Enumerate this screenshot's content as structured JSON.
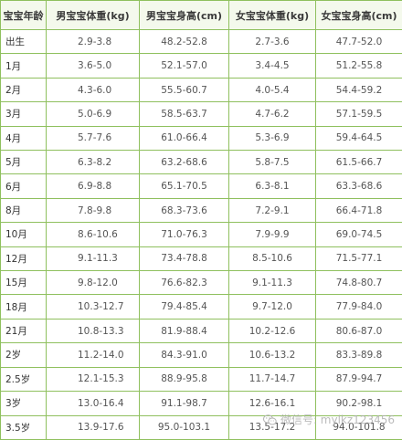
{
  "table": {
    "headers": [
      "宝宝年龄",
      "男宝宝体重(kg)",
      "男宝宝身高(cm)",
      "女宝宝体重(kg)",
      "女宝宝身高(cm)"
    ],
    "rows": [
      [
        "出生",
        "2.9-3.8",
        "48.2-52.8",
        "2.7-3.6",
        "47.7-52.0"
      ],
      [
        "1月",
        "3.6-5.0",
        "52.1-57.0",
        "3.4-4.5",
        "51.2-55.8"
      ],
      [
        "2月",
        "4.3-6.0",
        "55.5-60.7",
        "4.0-5.4",
        "54.4-59.2"
      ],
      [
        "3月",
        "5.0-6.9",
        "58.5-63.7",
        "4.7-6.2",
        "57.1-59.5"
      ],
      [
        "4月",
        "5.7-7.6",
        "61.0-66.4",
        "5.3-6.9",
        "59.4-64.5"
      ],
      [
        "5月",
        "6.3-8.2",
        "63.2-68.6",
        "5.8-7.5",
        "61.5-66.7"
      ],
      [
        "6月",
        "6.9-8.8",
        "65.1-70.5",
        "6.3-8.1",
        "63.3-68.6"
      ],
      [
        "8月",
        "7.8-9.8",
        "68.3-73.6",
        "7.2-9.1",
        "66.4-71.8"
      ],
      [
        "10月",
        "8.6-10.6",
        "71.0-76.3",
        "7.9-9.9",
        "69.0-74.5"
      ],
      [
        "12月",
        "9.1-11.3",
        "73.4-78.8",
        "8.5-10.6",
        "71.5-77.1"
      ],
      [
        "15月",
        "9.8-12.0",
        "76.6-82.3",
        "9.1-11.3",
        "74.8-80.7"
      ],
      [
        "18月",
        "10.3-12.7",
        "79.4-85.4",
        "9.7-12.0",
        "77.9-84.0"
      ],
      [
        "21月",
        "10.8-13.3",
        "81.9-88.4",
        "10.2-12.6",
        "80.6-87.0"
      ],
      [
        "2岁",
        "11.2-14.0",
        "84.3-91.0",
        "10.6-13.2",
        "83.3-89.8"
      ],
      [
        "2.5岁",
        "12.1-15.3",
        "88.9-95.8",
        "11.7-14.7",
        "87.9-94.7"
      ],
      [
        "3岁",
        "13.0-16.4",
        "91.1-98.7",
        "12.6-16.1",
        "90.2-98.1"
      ],
      [
        "3.5岁",
        "13.9-17.6",
        "95.0-103.1",
        "13.5-17.2",
        "94.0-101.8"
      ]
    ]
  },
  "watermark": {
    "text": "微信号: mylkz123456",
    "icon": "wechat-icon"
  },
  "colors": {
    "border": "#8fc05e",
    "header_bg": "#f4f9ec"
  }
}
